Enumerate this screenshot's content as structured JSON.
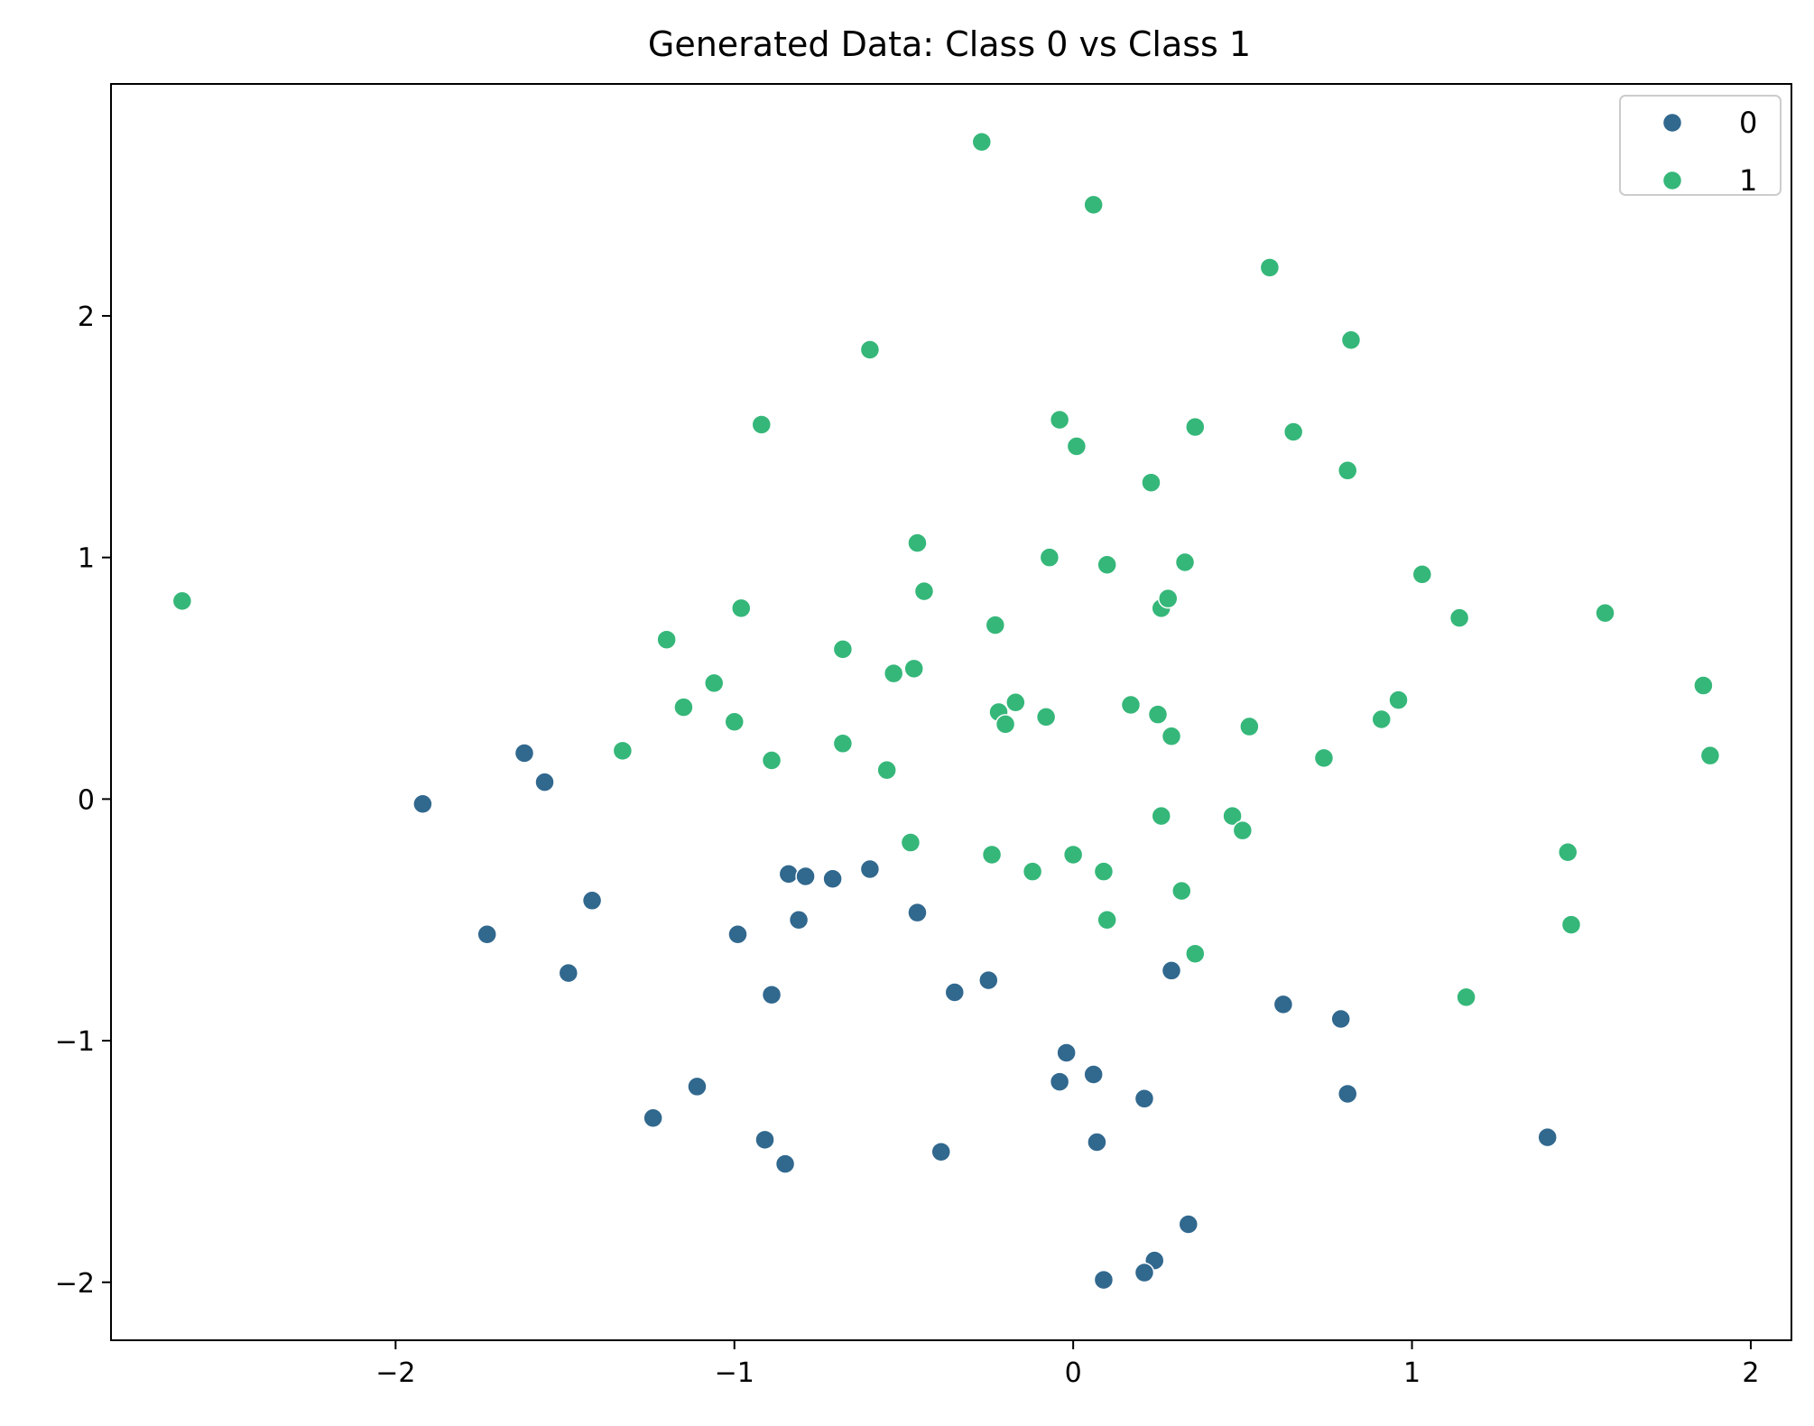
{
  "chart_data": {
    "type": "scatter",
    "title": "Generated Data: Class 0 vs Class 1",
    "xlabel": "",
    "ylabel": "",
    "xlim": [
      -2.84,
      2.12
    ],
    "ylim": [
      -2.24,
      2.96
    ],
    "x_ticks": [
      {
        "value": -2,
        "label": "−2"
      },
      {
        "value": -1,
        "label": "−1"
      },
      {
        "value": 0,
        "label": "0"
      },
      {
        "value": 1,
        "label": "1"
      },
      {
        "value": 2,
        "label": "2"
      }
    ],
    "y_ticks": [
      {
        "value": -2,
        "label": "−2"
      },
      {
        "value": -1,
        "label": "−1"
      },
      {
        "value": 0,
        "label": "0"
      },
      {
        "value": 1,
        "label": "1"
      },
      {
        "value": 2,
        "label": "2"
      }
    ],
    "grid": false,
    "legend_position": "top-right",
    "series": [
      {
        "name": "0",
        "color": "#31688e",
        "points": [
          [
            -1.92,
            -0.02
          ],
          [
            -1.62,
            0.19
          ],
          [
            -1.56,
            0.07
          ],
          [
            -1.42,
            -0.42
          ],
          [
            -1.73,
            -0.56
          ],
          [
            -1.49,
            -0.72
          ],
          [
            -0.84,
            -0.31
          ],
          [
            -0.79,
            -0.32
          ],
          [
            -0.71,
            -0.33
          ],
          [
            -0.6,
            -0.29
          ],
          [
            -0.81,
            -0.5
          ],
          [
            -0.99,
            -0.56
          ],
          [
            -0.46,
            -0.47
          ],
          [
            -0.89,
            -0.81
          ],
          [
            -0.35,
            -0.8
          ],
          [
            -0.25,
            -0.75
          ],
          [
            -1.11,
            -1.19
          ],
          [
            -1.24,
            -1.32
          ],
          [
            -0.91,
            -1.41
          ],
          [
            -0.85,
            -1.51
          ],
          [
            -0.39,
            -1.46
          ],
          [
            -0.02,
            -1.05
          ],
          [
            -0.04,
            -1.17
          ],
          [
            0.06,
            -1.14
          ],
          [
            0.07,
            -1.42
          ],
          [
            0.21,
            -1.24
          ],
          [
            0.29,
            -0.71
          ],
          [
            0.62,
            -0.85
          ],
          [
            0.79,
            -0.91
          ],
          [
            0.81,
            -1.22
          ],
          [
            1.4,
            -1.4
          ],
          [
            0.34,
            -1.76
          ],
          [
            0.24,
            -1.91
          ],
          [
            0.21,
            -1.96
          ],
          [
            0.09,
            -1.99
          ]
        ]
      },
      {
        "name": "1",
        "color": "#35b779",
        "points": [
          [
            -2.63,
            0.82
          ],
          [
            -0.27,
            2.72
          ],
          [
            0.06,
            2.46
          ],
          [
            0.58,
            2.2
          ],
          [
            0.82,
            1.9
          ],
          [
            -0.6,
            1.86
          ],
          [
            -0.92,
            1.55
          ],
          [
            -0.04,
            1.57
          ],
          [
            0.01,
            1.46
          ],
          [
            0.36,
            1.54
          ],
          [
            0.65,
            1.52
          ],
          [
            0.81,
            1.36
          ],
          [
            0.23,
            1.31
          ],
          [
            -0.46,
            1.06
          ],
          [
            -0.07,
            1.0
          ],
          [
            0.1,
            0.97
          ],
          [
            0.33,
            0.98
          ],
          [
            1.03,
            0.93
          ],
          [
            -0.44,
            0.86
          ],
          [
            -0.98,
            0.79
          ],
          [
            0.26,
            0.79
          ],
          [
            0.28,
            0.83
          ],
          [
            1.14,
            0.75
          ],
          [
            1.57,
            0.77
          ],
          [
            -1.2,
            0.66
          ],
          [
            -0.23,
            0.72
          ],
          [
            -0.68,
            0.62
          ],
          [
            -0.53,
            0.52
          ],
          [
            -0.47,
            0.54
          ],
          [
            -1.06,
            0.48
          ],
          [
            -1.15,
            0.38
          ],
          [
            -1.0,
            0.32
          ],
          [
            -0.22,
            0.36
          ],
          [
            -0.17,
            0.4
          ],
          [
            -0.08,
            0.34
          ],
          [
            -0.2,
            0.31
          ],
          [
            0.17,
            0.39
          ],
          [
            0.25,
            0.35
          ],
          [
            0.29,
            0.26
          ],
          [
            0.52,
            0.3
          ],
          [
            0.91,
            0.33
          ],
          [
            0.96,
            0.41
          ],
          [
            1.86,
            0.47
          ],
          [
            -1.33,
            0.2
          ],
          [
            -0.89,
            0.16
          ],
          [
            -0.68,
            0.23
          ],
          [
            -0.55,
            0.12
          ],
          [
            0.74,
            0.17
          ],
          [
            1.88,
            0.18
          ],
          [
            0.26,
            -0.07
          ],
          [
            0.47,
            -0.07
          ],
          [
            0.5,
            -0.13
          ],
          [
            -0.48,
            -0.18
          ],
          [
            -0.24,
            -0.23
          ],
          [
            -0.12,
            -0.3
          ],
          [
            0.0,
            -0.23
          ],
          [
            0.09,
            -0.3
          ],
          [
            0.32,
            -0.38
          ],
          [
            1.46,
            -0.22
          ],
          [
            0.1,
            -0.5
          ],
          [
            1.47,
            -0.52
          ],
          [
            0.36,
            -0.64
          ],
          [
            1.16,
            -0.82
          ]
        ]
      }
    ]
  }
}
